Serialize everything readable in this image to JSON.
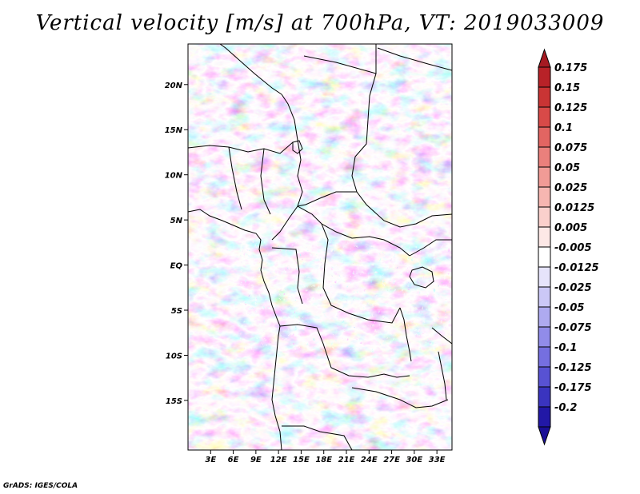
{
  "title": "Vertical velocity [m/s] at 700hPa, VT: 2019033009",
  "credit": "GrADS: IGES/COLA",
  "map": {
    "variable": "vertical velocity",
    "level": "700hPa",
    "lon_range": [
      0,
      35
    ],
    "lat_range": [
      -20.5,
      24.5
    ],
    "lat_ticks": [
      {
        "value": 20,
        "label": "20N"
      },
      {
        "value": 15,
        "label": "15N"
      },
      {
        "value": 10,
        "label": "10N"
      },
      {
        "value": 5,
        "label": "5N"
      },
      {
        "value": 0,
        "label": "EQ"
      },
      {
        "value": -5,
        "label": "5S"
      },
      {
        "value": -10,
        "label": "10S"
      },
      {
        "value": -15,
        "label": "15S"
      }
    ],
    "lon_ticks": [
      {
        "value": 3,
        "label": "3E"
      },
      {
        "value": 6,
        "label": "6E"
      },
      {
        "value": 9,
        "label": "9E"
      },
      {
        "value": 12,
        "label": "12E"
      },
      {
        "value": 15,
        "label": "15E"
      },
      {
        "value": 18,
        "label": "18E"
      },
      {
        "value": 21,
        "label": "21E"
      },
      {
        "value": 24,
        "label": "24E"
      },
      {
        "value": 27,
        "label": "27E"
      },
      {
        "value": 30,
        "label": "30E"
      },
      {
        "value": 33,
        "label": "33E"
      }
    ]
  },
  "colorbar": {
    "levels": [
      {
        "label": "0.175",
        "color": "#b82228"
      },
      {
        "label": "0.15",
        "color": "#c93434"
      },
      {
        "label": "0.125",
        "color": "#d84a48"
      },
      {
        "label": "0.1",
        "color": "#e26562"
      },
      {
        "label": "0.075",
        "color": "#ea807c"
      },
      {
        "label": "0.05",
        "color": "#f19b96"
      },
      {
        "label": "0.025",
        "color": "#f6b6b1"
      },
      {
        "label": "0.0125",
        "color": "#fad0cc"
      },
      {
        "label": "0.005",
        "color": "#fde8e6"
      },
      {
        "label": "-0.005",
        "color": "#ffffff"
      },
      {
        "label": "-0.0125",
        "color": "#e6e4fb"
      },
      {
        "label": "-0.025",
        "color": "#cbc8f6"
      },
      {
        "label": "-0.05",
        "color": "#aeaaf0"
      },
      {
        "label": "-0.075",
        "color": "#918ce9"
      },
      {
        "label": "-0.1",
        "color": "#756fe0"
      },
      {
        "label": "-0.125",
        "color": "#5852d3"
      },
      {
        "label": "-0.175",
        "color": "#3a34bf"
      },
      {
        "label": "-0.2",
        "color": "#2218a6"
      }
    ],
    "top_extend_color": "#a51a22",
    "bottom_extend_color": "#1a0f96"
  }
}
